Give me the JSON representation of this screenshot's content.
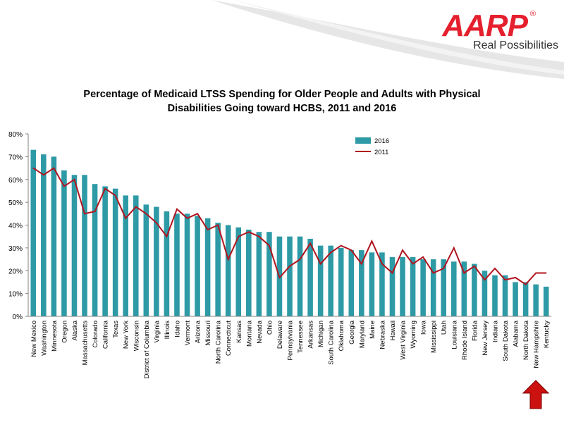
{
  "brand": {
    "logo_text": "AARP",
    "registered_mark": "®",
    "tagline": "Real Possibilities",
    "color": "#e5202e"
  },
  "colors": {
    "bar_2016": "#2d9aa6",
    "line_2011": "#b0141e",
    "arrow": "#cc1111"
  },
  "chart_data": {
    "type": "bar",
    "title_lines": [
      "Percentage of Medicaid LTSS Spending for Older People and Adults with Physical",
      "Disabilities Going toward HCBS, 2011 and 2016"
    ],
    "ylim": [
      0,
      80
    ],
    "yticks": [
      "0%",
      "10%",
      "20%",
      "30%",
      "40%",
      "50%",
      "60%",
      "70%",
      "80%"
    ],
    "y_unit": "%",
    "legend_position": "top-center",
    "categories": [
      "New Mexico",
      "Washington",
      "Minnesota",
      "Oregon",
      "Alaska",
      "Massachusetts",
      "Colorado",
      "California",
      "Texas",
      "New York",
      "Wisconsin",
      "District of Columbia",
      "Virginia",
      "Illinois",
      "Idaho",
      "Vermont",
      "Arizona",
      "Missouri",
      "North Carolina",
      "Connecticut",
      "Kansas",
      "Montana",
      "Nevada",
      "Ohio",
      "Delaware",
      "Pennsylvania",
      "Tennessee",
      "Arkansas",
      "Michigan",
      "South Carolina",
      "Oklahoma",
      "Georgia",
      "Maryland",
      "Maine",
      "Nebraska",
      "Hawaii",
      "West Virginia",
      "Wyoming",
      "Iowa",
      "Mississippi",
      "Utah",
      "Louisiana",
      "Rhode Island",
      "Florida",
      "New Jersey",
      "Indiana",
      "South Dakota",
      "Alabama",
      "North Dakota",
      "New Hampshire",
      "Kentucky"
    ],
    "series": [
      {
        "name": "2016",
        "type": "bar",
        "values": [
          73,
          71,
          70,
          64,
          62,
          62,
          58,
          57,
          56,
          53,
          53,
          49,
          48,
          46,
          45,
          45,
          44,
          43,
          41,
          40,
          39,
          38,
          37,
          37,
          35,
          35,
          35,
          34,
          31,
          31,
          30,
          29,
          29,
          28,
          28,
          26,
          26,
          26,
          25,
          25,
          25,
          24,
          24,
          23,
          20,
          18,
          18,
          15,
          15,
          14,
          13
        ]
      },
      {
        "name": "2011",
        "type": "line",
        "values": [
          65,
          62,
          65,
          57,
          60,
          45,
          46,
          56,
          53,
          43,
          48,
          45,
          41,
          35,
          47,
          43,
          45,
          38,
          40,
          25,
          35,
          37,
          35,
          31,
          17,
          22,
          25,
          32,
          23,
          28,
          31,
          29,
          23,
          33,
          23,
          19,
          29,
          23,
          26,
          19,
          21,
          30,
          19,
          22,
          16,
          21,
          16,
          17,
          14,
          19,
          19
        ]
      }
    ]
  }
}
